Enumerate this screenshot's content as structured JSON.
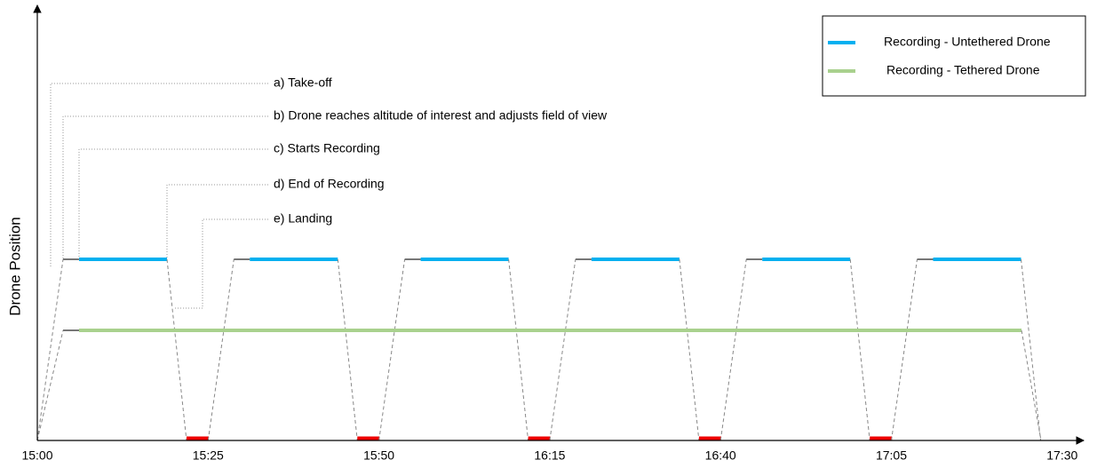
{
  "y_axis_label": "Drone Position",
  "x_ticks": [
    "15:00",
    "15:25",
    "15:50",
    "16:15",
    "16:40",
    "17:05",
    "17:30"
  ],
  "annotations": [
    "a) Take-off",
    "b) Drone reaches altitude of interest and adjusts field of view",
    "c) Starts Recording",
    "d) End of Recording",
    "e) Landing"
  ],
  "legend": [
    {
      "label": "Recording - Untethered Drone",
      "color": "#00b0f0"
    },
    {
      "label": "Recording - Tethered Drone",
      "color": "#a9d18e"
    }
  ]
}
